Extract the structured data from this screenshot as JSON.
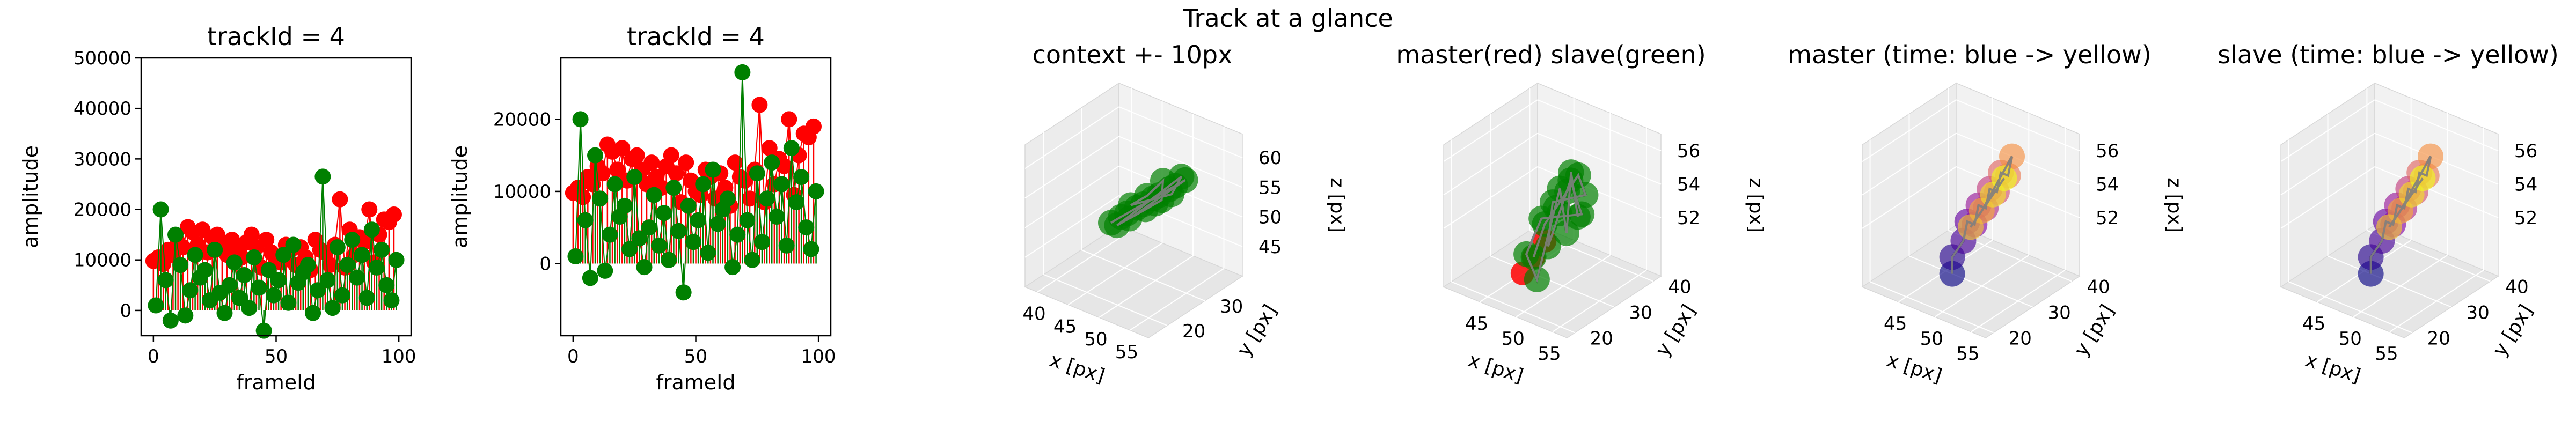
{
  "suptitle": "Track at a glance",
  "colors": {
    "master": "#ff0000",
    "slave": "#008000",
    "path": "#808080"
  },
  "chart_data": [
    {
      "type": "scatter",
      "title": "trackId = 4",
      "xlabel": "frameId",
      "ylabel": "amplitude",
      "xlim": [
        -5,
        105
      ],
      "ylim": [
        -5000,
        50000
      ],
      "xticks": [
        "0",
        "50",
        "100"
      ],
      "yticks": [
        "0",
        "10000",
        "20000",
        "30000",
        "40000",
        "50000"
      ],
      "grid": false,
      "series": [
        {
          "color": "#ff0000",
          "x": [
            0,
            2,
            4,
            6,
            8,
            10,
            12,
            14,
            16,
            18,
            20,
            22,
            24,
            26,
            28,
            30,
            32,
            34,
            36,
            38,
            40,
            42,
            44,
            46,
            48,
            50,
            52,
            54,
            56,
            58,
            60,
            62,
            64,
            66,
            68,
            70,
            72,
            74,
            76,
            78,
            80,
            82,
            84,
            86,
            88,
            90,
            92,
            94,
            96,
            98
          ],
          "values": [
            9800,
            10500,
            9200,
            12000,
            11000,
            13500,
            12500,
            16500,
            15500,
            13000,
            16000,
            11500,
            14500,
            15000,
            13000,
            11000,
            14000,
            12000,
            10500,
            13500,
            15000,
            12500,
            8500,
            14000,
            11500,
            10000,
            9500,
            13000,
            12000,
            9000,
            12500,
            10500,
            8000,
            14000,
            12000,
            11500,
            9000,
            13000,
            22000,
            8500,
            16000,
            11000,
            14500,
            13500,
            20000,
            9500,
            15000,
            18000,
            17500,
            19000
          ]
        },
        {
          "color": "#008000",
          "x": [
            1,
            3,
            5,
            7,
            9,
            11,
            13,
            15,
            17,
            19,
            21,
            23,
            25,
            27,
            29,
            31,
            33,
            35,
            37,
            39,
            41,
            43,
            45,
            47,
            49,
            51,
            53,
            55,
            57,
            59,
            61,
            63,
            65,
            67,
            69,
            71,
            73,
            75,
            77,
            79,
            81,
            83,
            85,
            87,
            89,
            91,
            93,
            95,
            97,
            99
          ],
          "values": [
            1000,
            20000,
            6000,
            -2000,
            15000,
            9000,
            -1000,
            4000,
            11000,
            6500,
            8000,
            2000,
            12000,
            3500,
            -500,
            5000,
            9500,
            2500,
            7000,
            500,
            10500,
            4500,
            -4000,
            8000,
            3000,
            6000,
            11000,
            1500,
            13000,
            5500,
            7500,
            9000,
            -500,
            4000,
            26500,
            6000,
            500,
            12500,
            3000,
            9000,
            14000,
            6500,
            11000,
            2500,
            16000,
            8500,
            12000,
            5000,
            2000,
            10000
          ]
        }
      ]
    },
    {
      "type": "scatter",
      "title": "trackId = 4",
      "xlabel": "frameId",
      "ylabel": "amplitude",
      "xlim": [
        -5,
        105
      ],
      "ylim": [
        -10000,
        28500
      ],
      "xticks": [
        "0",
        "50",
        "100"
      ],
      "yticks": [
        "0",
        "10000",
        "20000"
      ],
      "grid": false,
      "series": [
        {
          "color": "#ff0000",
          "x": [
            0,
            2,
            4,
            6,
            8,
            10,
            12,
            14,
            16,
            18,
            20,
            22,
            24,
            26,
            28,
            30,
            32,
            34,
            36,
            38,
            40,
            42,
            44,
            46,
            48,
            50,
            52,
            54,
            56,
            58,
            60,
            62,
            64,
            66,
            68,
            70,
            72,
            74,
            76,
            78,
            80,
            82,
            84,
            86,
            88,
            90,
            92,
            94,
            96,
            98
          ],
          "values": [
            9800,
            10500,
            9200,
            12000,
            11000,
            13500,
            12500,
            16500,
            15500,
            13000,
            16000,
            11500,
            14500,
            15000,
            13000,
            11000,
            14000,
            12000,
            10500,
            13500,
            15000,
            12500,
            8500,
            14000,
            11500,
            10000,
            9500,
            13000,
            12000,
            9000,
            12500,
            10500,
            8000,
            14000,
            12000,
            11500,
            9000,
            13000,
            22000,
            8500,
            16000,
            11000,
            14500,
            13500,
            20000,
            9500,
            15000,
            18000,
            17500,
            19000
          ]
        },
        {
          "color": "#008000",
          "x": [
            1,
            3,
            5,
            7,
            9,
            11,
            13,
            15,
            17,
            19,
            21,
            23,
            25,
            27,
            29,
            31,
            33,
            35,
            37,
            39,
            41,
            43,
            45,
            47,
            49,
            51,
            53,
            55,
            57,
            59,
            61,
            63,
            65,
            67,
            69,
            71,
            73,
            75,
            77,
            79,
            81,
            83,
            85,
            87,
            89,
            91,
            93,
            95,
            97,
            99
          ],
          "values": [
            1000,
            20000,
            6000,
            -2000,
            15000,
            9000,
            -1000,
            4000,
            11000,
            6500,
            8000,
            2000,
            12000,
            3500,
            -500,
            5000,
            9500,
            2500,
            7000,
            500,
            10500,
            4500,
            -4000,
            8000,
            3000,
            6000,
            11000,
            1500,
            13000,
            5500,
            7500,
            9000,
            -500,
            4000,
            26500,
            6000,
            500,
            12500,
            3000,
            9000,
            14000,
            6500,
            11000,
            2500,
            16000,
            8500,
            12000,
            5000,
            2000,
            10000
          ]
        }
      ]
    },
    {
      "type": "scatter",
      "dims": 3,
      "title": "context +- 10px",
      "xlabel": "x [px]",
      "ylabel": "y [px]",
      "zlabel": "z [px]",
      "xlim": [
        38,
        58
      ],
      "ylim": [
        15,
        40
      ],
      "zlim": [
        40,
        64
      ],
      "xticks": [
        "40",
        "45",
        "50",
        "55"
      ],
      "yticks": [
        "20",
        "30"
      ],
      "zticks": [
        "45",
        "50",
        "55",
        "60"
      ],
      "points": [
        [
          44,
          28,
          48
        ],
        [
          45,
          29,
          49
        ],
        [
          46,
          29,
          50
        ],
        [
          47,
          30,
          51
        ],
        [
          48,
          30,
          52
        ],
        [
          49,
          31,
          53
        ],
        [
          50,
          31,
          54
        ],
        [
          51,
          32,
          55
        ],
        [
          52,
          32,
          56
        ],
        [
          53,
          33,
          57
        ],
        [
          47,
          28,
          50
        ],
        [
          49,
          29,
          52
        ],
        [
          51,
          30,
          54
        ],
        [
          50,
          32,
          56
        ],
        [
          48,
          31,
          53
        ],
        [
          46,
          30,
          51
        ],
        [
          52,
          31,
          55
        ],
        [
          53,
          32,
          58
        ],
        [
          45,
          28,
          48
        ],
        [
          50,
          30,
          53
        ]
      ],
      "point_color": "#008000",
      "path_color": "#808080"
    },
    {
      "type": "scatter",
      "dims": 3,
      "title": "master(red) slave(green)",
      "xlabel": "x [px]",
      "ylabel": "y [px]",
      "zlabel": "z [px]",
      "xlim": [
        40,
        57
      ],
      "ylim": [
        18,
        42
      ],
      "zlim": [
        48.5,
        57
      ],
      "xticks": [
        "45",
        "50",
        "55"
      ],
      "yticks": [
        "20",
        "30",
        "40"
      ],
      "zticks": [
        "52",
        "54",
        "56"
      ],
      "points": [
        [
          47,
          28,
          50
        ],
        [
          48,
          29,
          52
        ],
        [
          49,
          30,
          53
        ],
        [
          50,
          31,
          54
        ],
        [
          51,
          32,
          55
        ],
        [
          52,
          32,
          54
        ],
        [
          48,
          31,
          53
        ],
        [
          49,
          28,
          51
        ],
        [
          50,
          29,
          53
        ],
        [
          51,
          30,
          55
        ],
        [
          52,
          31,
          53
        ],
        [
          47,
          30,
          52
        ],
        [
          46,
          28,
          50
        ],
        [
          48,
          27,
          49
        ],
        [
          49,
          31,
          54
        ],
        [
          51,
          29,
          52
        ],
        [
          50,
          32,
          55
        ],
        [
          52,
          30,
          53
        ]
      ],
      "master": [
        [
          47,
          28,
          50
        ],
        [
          46,
          27,
          49
        ],
        [
          48,
          29,
          51
        ]
      ],
      "point_color": "#008000",
      "master_color": "#ff0000",
      "path_color": "#808080"
    },
    {
      "type": "scatter",
      "dims": 3,
      "title": "master (time: blue -> yellow)",
      "xlabel": "x [px]",
      "ylabel": "y [px]",
      "zlabel": "z [px]",
      "xlim": [
        40,
        57
      ],
      "ylim": [
        18,
        42
      ],
      "zlim": [
        48.5,
        57
      ],
      "xticks": [
        "45",
        "50",
        "55"
      ],
      "yticks": [
        "20",
        "30",
        "40"
      ],
      "zticks": [
        "52",
        "54",
        "56"
      ],
      "points": [
        [
          47,
          28,
          49
        ],
        [
          47,
          28,
          50
        ],
        [
          48,
          29,
          51
        ],
        [
          48,
          30,
          52
        ],
        [
          49,
          30,
          52
        ],
        [
          49,
          31,
          53
        ],
        [
          50,
          31,
          53
        ],
        [
          50,
          32,
          54
        ],
        [
          51,
          32,
          54
        ],
        [
          51,
          33,
          55
        ],
        [
          52,
          33,
          55
        ],
        [
          52,
          34,
          56
        ],
        [
          50,
          30,
          53
        ],
        [
          49,
          29,
          52
        ],
        [
          51,
          31,
          54
        ],
        [
          52,
          32,
          55
        ]
      ],
      "colormap": "plasma",
      "path_color": "#808080"
    },
    {
      "type": "scatter",
      "dims": 3,
      "title": "slave (time: blue -> yellow)",
      "xlabel": "x [px]",
      "ylabel": "y [px]",
      "zlabel": "z [px]",
      "xlim": [
        40,
        57
      ],
      "ylim": [
        18,
        42
      ],
      "zlim": [
        48.5,
        57
      ],
      "xticks": [
        "45",
        "50",
        "55"
      ],
      "yticks": [
        "20",
        "30",
        "40"
      ],
      "zticks": [
        "52",
        "54",
        "56"
      ],
      "points": [
        [
          47,
          28,
          49
        ],
        [
          47,
          28,
          50
        ],
        [
          48,
          29,
          51
        ],
        [
          48,
          30,
          52
        ],
        [
          49,
          30,
          52
        ],
        [
          49,
          31,
          53
        ],
        [
          50,
          31,
          53
        ],
        [
          50,
          32,
          54
        ],
        [
          51,
          32,
          54
        ],
        [
          51,
          33,
          55
        ],
        [
          52,
          33,
          55
        ],
        [
          52,
          34,
          56
        ],
        [
          50,
          30,
          53
        ],
        [
          49,
          29,
          52
        ],
        [
          51,
          31,
          54
        ],
        [
          52,
          32,
          55
        ]
      ],
      "colormap": "plasma",
      "path_color": "#808080"
    }
  ]
}
